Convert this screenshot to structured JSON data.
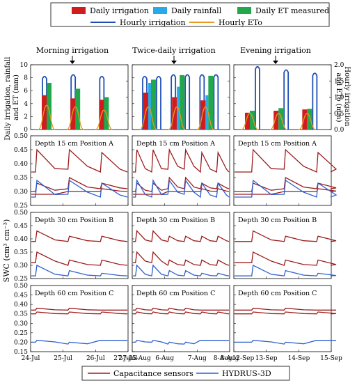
{
  "legend_top": {
    "daily_irrigation": "Daily irrigation",
    "daily_rainfall": "Daily rainfall",
    "daily_et": "Daily  ET measured",
    "hourly_irrigation": "Hourly  irrigation",
    "hourly_eto": "Hourly ETo"
  },
  "legend_bottom": {
    "capacitance": "Capacitance sensors",
    "hydrus": "HYDRUS-3D"
  },
  "colors": {
    "irrigation_bar": "#d01c1c",
    "rainfall_bar": "#29a9e6",
    "et_bar": "#22a84a",
    "hourly_irrigation": "#1f4fb4",
    "hourly_eto": "#e69a1e",
    "capacitance": "#9b1b1b",
    "hydrus": "#2b5fcf"
  },
  "column_titles": [
    "Morning irrigation",
    "Twice-daily  irrigation",
    "Evening irrigation"
  ],
  "ylabels": {
    "top_left": "Daily irrigation, rainfall and ET (mm)",
    "top_right": "Hourly irrigation and ETo (mm)",
    "swc": "SWC (cm³ cm⁻³)"
  },
  "row_labels": [
    "Depth  15 cm  Position   A",
    "Depth  30 cm  Position   B",
    "Depth  60 cm  Position   C"
  ],
  "xaxis": {
    "col0": [
      "24-Jul",
      "25-Jul",
      "26-Jul",
      "27-Jul"
    ],
    "col1": [
      "5-Aug",
      "6-Aug",
      "7-Aug",
      "8-Aug"
    ],
    "col2": [
      "12-Sep",
      "13-Sep",
      "14-Sep",
      "15-Sep"
    ]
  },
  "chart_data": [
    {
      "type": "bar",
      "title": "Morning irrigation",
      "categories": [
        "24-Jul",
        "25-Jul",
        "26-Jul"
      ],
      "series": [
        {
          "name": "Daily irrigation",
          "values": [
            5.3,
            4.8,
            4.6
          ]
        },
        {
          "name": "Daily rainfall",
          "values": [
            0,
            0,
            0
          ]
        },
        {
          "name": "Daily  ET measured",
          "values": [
            7.2,
            6.3,
            5.0
          ]
        }
      ],
      "hourly_irrigation_peak": [
        1.65,
        1.7,
        1.65
      ],
      "hourly_eto_peak": [
        0.75,
        0.7,
        0.6
      ],
      "ylim": [
        0,
        10
      ],
      "y2lim": [
        0,
        2
      ]
    },
    {
      "type": "bar",
      "title": "Twice-daily  irrigation",
      "categories": [
        "5-Aug",
        "6-Aug",
        "7-Aug"
      ],
      "series": [
        {
          "name": "Daily irrigation",
          "values": [
            5.7,
            5.0,
            4.5
          ]
        },
        {
          "name": "Daily rainfall",
          "values": [
            7.2,
            6.6,
            5.3
          ]
        },
        {
          "name": "Daily  ET measured",
          "values": [
            7.7,
            8.4,
            8.3
          ]
        }
      ],
      "hourly_irrigation_peak": [
        1.65,
        1.7,
        1.7
      ],
      "hourly_eto_peak": [
        0.7,
        0.7,
        0.7
      ],
      "ylim": [
        0,
        10
      ],
      "y2lim": [
        0,
        2
      ]
    },
    {
      "type": "bar",
      "title": "Evening irrigation",
      "categories": [
        "12-Sep",
        "13-Sep",
        "14-Sep"
      ],
      "series": [
        {
          "name": "Daily irrigation",
          "values": [
            2.6,
            2.9,
            3.1
          ]
        },
        {
          "name": "Daily rainfall",
          "values": [
            0,
            0,
            0
          ]
        },
        {
          "name": "Daily  ET measured",
          "values": [
            2.9,
            3.3,
            3.2
          ]
        }
      ],
      "hourly_irrigation_peak": [
        1.95,
        1.85,
        1.75
      ],
      "hourly_eto_peak": [
        0.5,
        0.5,
        0.5
      ],
      "ylim": [
        0,
        10
      ],
      "y2lim": [
        0,
        2
      ]
    },
    {
      "type": "line",
      "title": "Depth  15 cm  Position   A",
      "ylabel": "SWC (cm³ cm⁻³)",
      "ylim": [
        0.25,
        0.5
      ],
      "series": [
        {
          "name": "Capacitance sensors",
          "x_days": [
            0,
            3
          ],
          "irrigations_per_day": [
            1,
            2,
            1
          ],
          "peak": [
            0.45,
            0.45,
            0.44
          ],
          "base": [
            0.37,
            0.38,
            0.37
          ]
        },
        {
          "name": "Capacitance sensors",
          "peak": [
            0.33,
            0.35,
            0.33
          ],
          "base": [
            0.3,
            0.31,
            0.31
          ]
        },
        {
          "name": "Capacitance sensors",
          "peak": [
            0.29,
            0.3,
            0.31
          ],
          "base": [
            0.29,
            0.3,
            0.3
          ]
        },
        {
          "name": "HYDRUS-3D",
          "peak": [
            0.34,
            0.34,
            0.33
          ],
          "base": [
            0.28,
            0.29,
            0.28
          ]
        }
      ]
    },
    {
      "type": "line",
      "title": "Depth  30 cm  Position   B",
      "ylabel": "SWC (cm³ cm⁻³)",
      "ylim": [
        0.25,
        0.5
      ],
      "series": [
        {
          "name": "Capacitance sensors",
          "peak": [
            0.43,
            0.41,
            0.41
          ],
          "base": [
            0.39,
            0.39,
            0.39
          ]
        },
        {
          "name": "Capacitance sensors",
          "peak": [
            0.35,
            0.32,
            0.32
          ],
          "base": [
            0.31,
            0.3,
            0.3
          ]
        },
        {
          "name": "HYDRUS-3D",
          "peak": [
            0.3,
            0.28,
            0.27
          ],
          "base": [
            0.26,
            0.26,
            0.26
          ]
        }
      ]
    },
    {
      "type": "line",
      "title": "Depth  60 cm  Position   C",
      "ylabel": "SWC (cm³ cm⁻³)",
      "ylim": [
        0.15,
        0.5
      ],
      "series": [
        {
          "name": "Capacitance sensors",
          "peak": [
            0.38,
            0.38,
            0.37
          ],
          "base": [
            0.37,
            0.37,
            0.37
          ]
        },
        {
          "name": "Capacitance sensors",
          "peak": [
            0.36,
            0.36,
            0.36
          ],
          "base": [
            0.35,
            0.35,
            0.35
          ]
        },
        {
          "name": "HYDRUS-3D",
          "peak": [
            0.21,
            0.2,
            0.21
          ],
          "base": [
            0.2,
            0.19,
            0.21
          ]
        }
      ]
    }
  ],
  "axes": {
    "top_left_ticks": [
      "0",
      "2",
      "4",
      "6",
      "8",
      "10"
    ],
    "top_right_ticks": [
      "0.0",
      "0.5",
      "1.0",
      "1.5",
      "2.0"
    ],
    "swc_ticks_15": [
      "0.25",
      "0.30",
      "0.35",
      "0.40",
      "0.45",
      "0.50"
    ],
    "swc_ticks_30": [
      "0.25",
      "0.30",
      "0.35",
      "0.40",
      "0.45",
      "0.50"
    ],
    "swc_ticks_60": [
      "0.15",
      "0.20",
      "0.25",
      "0.30",
      "0.35",
      "0.40",
      "0.45",
      "0.50"
    ]
  }
}
